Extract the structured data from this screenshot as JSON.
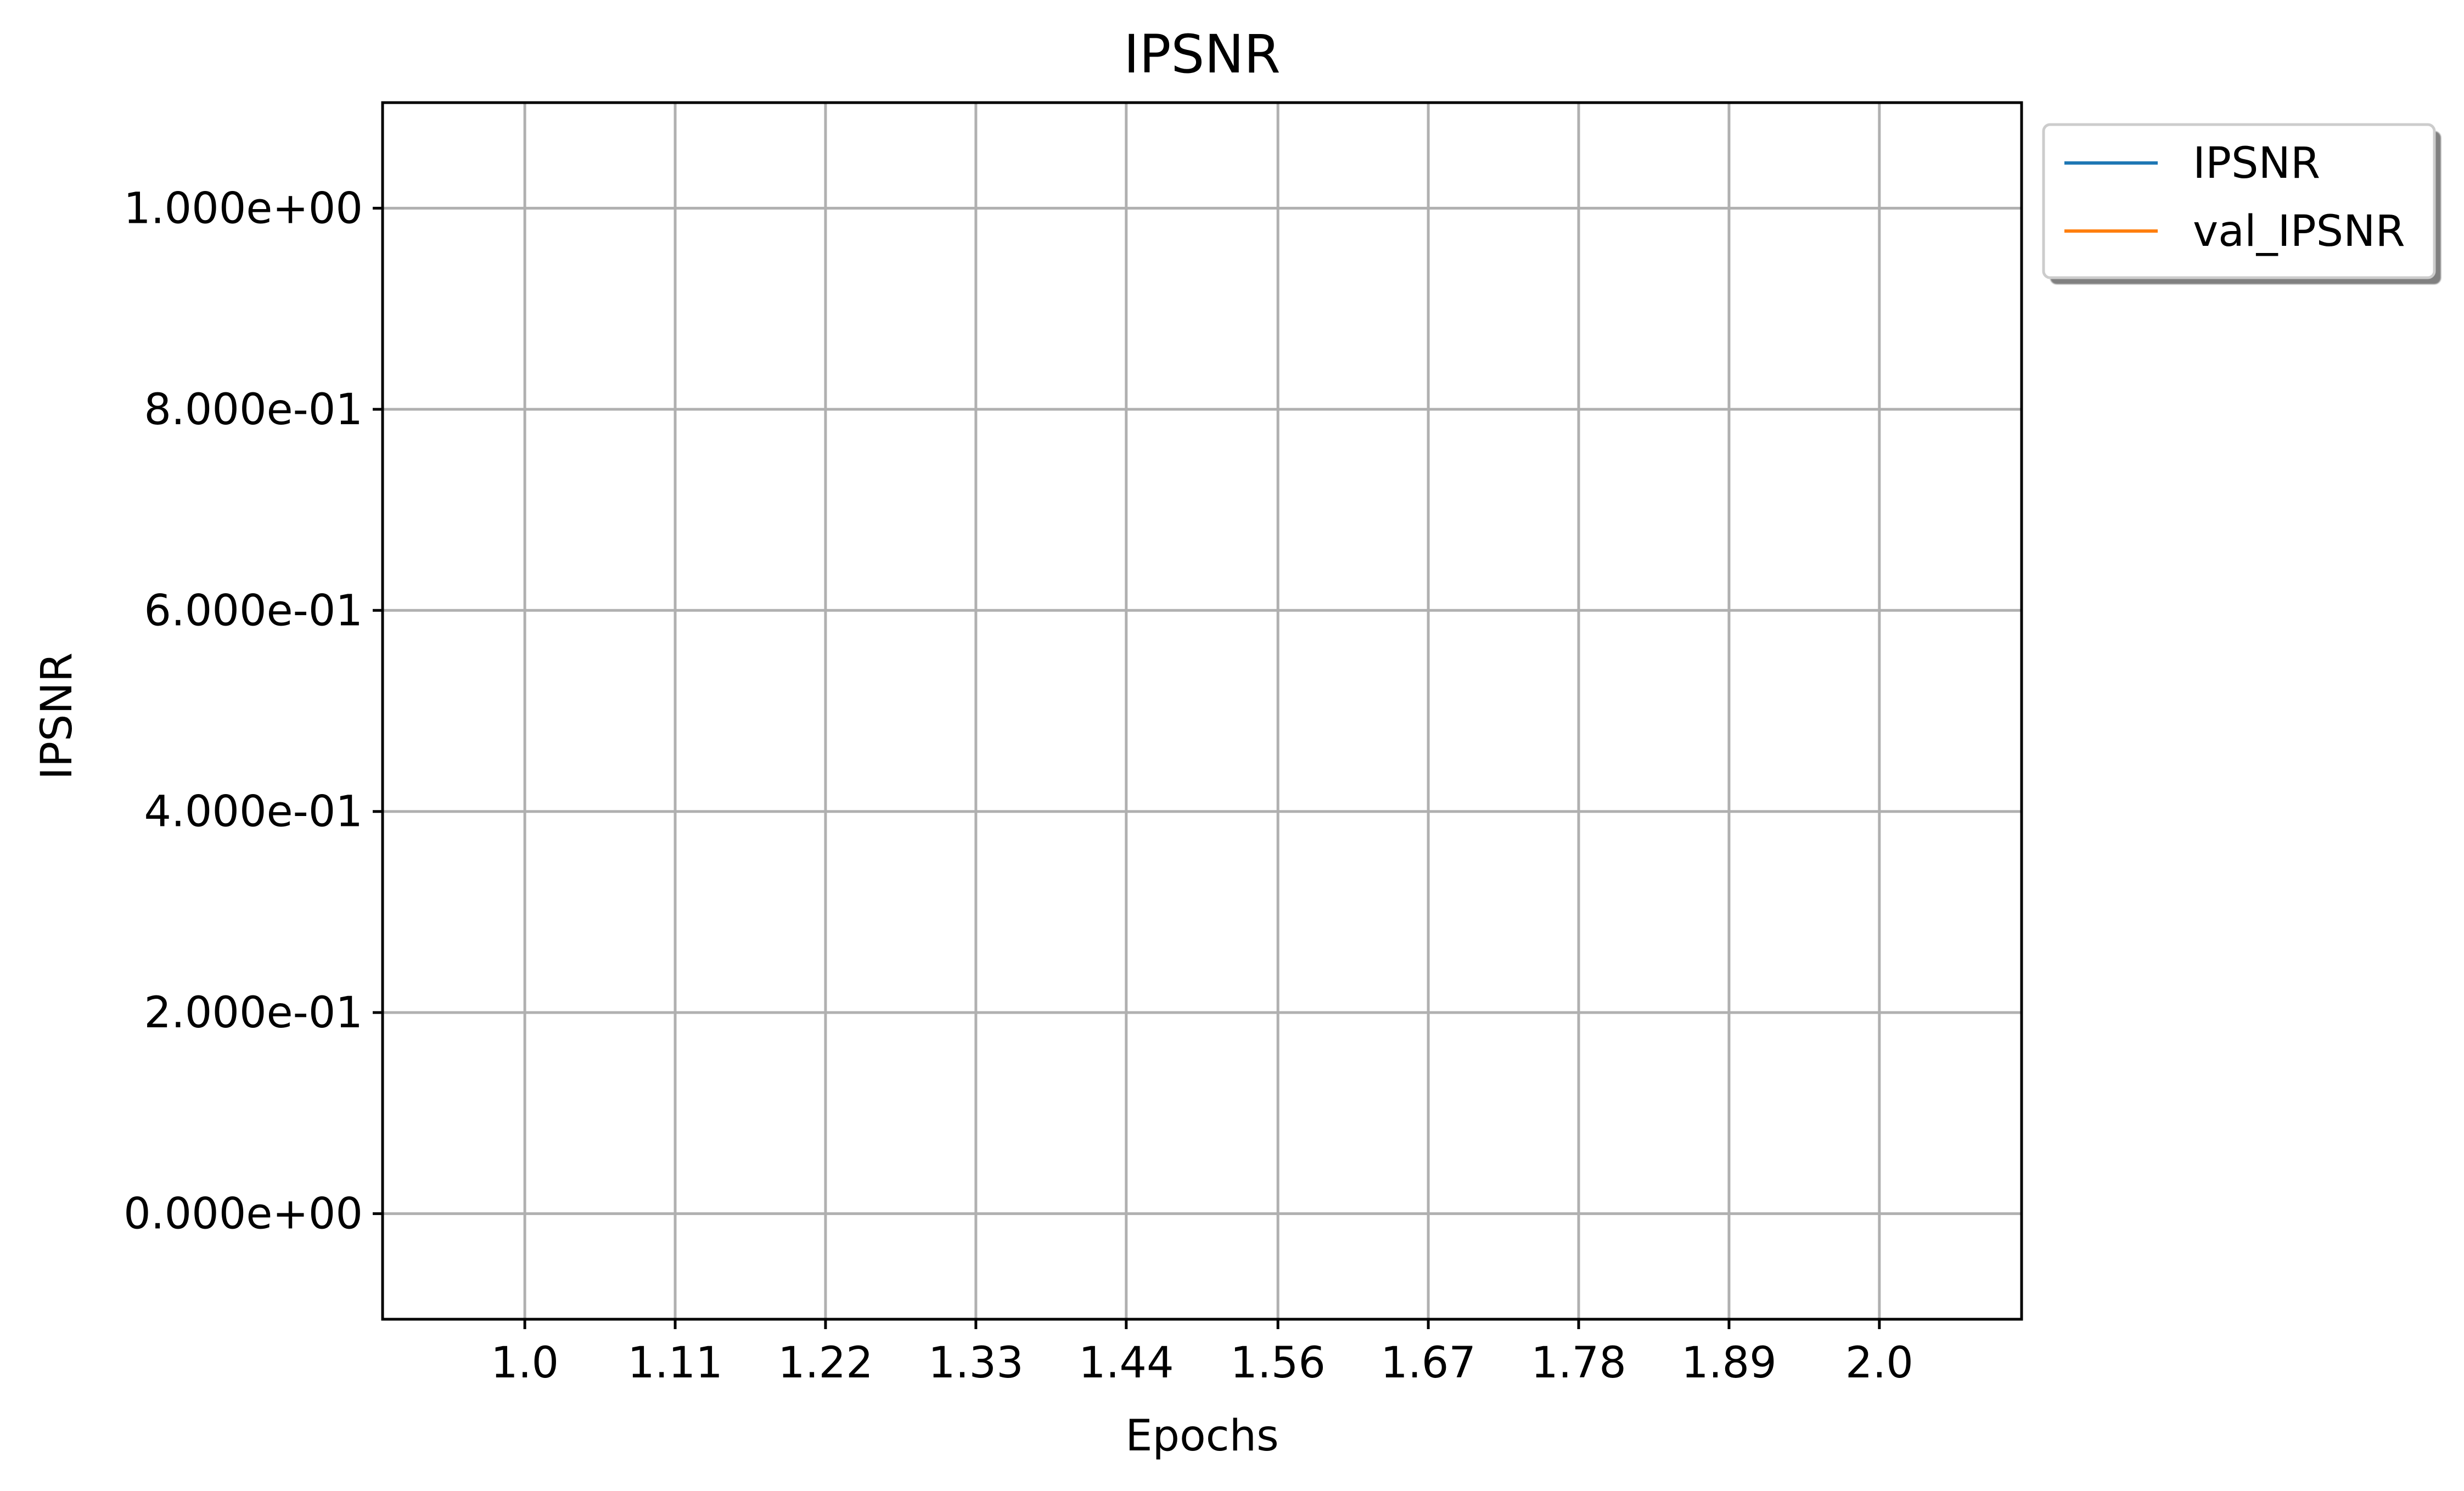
{
  "chart_data": {
    "type": "line",
    "title": "IPSNR",
    "xlabel": "Epochs",
    "ylabel": "IPSNR",
    "x_ticks": [
      "1.0",
      "1.11",
      "1.22",
      "1.33",
      "1.44",
      "1.56",
      "1.67",
      "1.78",
      "1.89",
      "2.0"
    ],
    "x_tick_values": [
      1.0,
      1.111,
      1.222,
      1.333,
      1.444,
      1.556,
      1.667,
      1.778,
      1.889,
      2.0
    ],
    "y_ticks": [
      "0.000e+00",
      "2.000e-01",
      "4.000e-01",
      "6.000e-01",
      "8.000e-01",
      "1.000e+00"
    ],
    "y_tick_values": [
      0.0,
      0.2,
      0.4,
      0.6,
      0.8,
      1.0
    ],
    "xlim": [
      0.895,
      2.105
    ],
    "ylim": [
      -0.105,
      1.105
    ],
    "grid": true,
    "legend_position": "outside-top-right",
    "series": [
      {
        "name": "IPSNR",
        "color": "#1f77b4",
        "x": [],
        "y": []
      },
      {
        "name": "val_IPSNR",
        "color": "#ff7f0e",
        "x": [],
        "y": []
      }
    ]
  }
}
